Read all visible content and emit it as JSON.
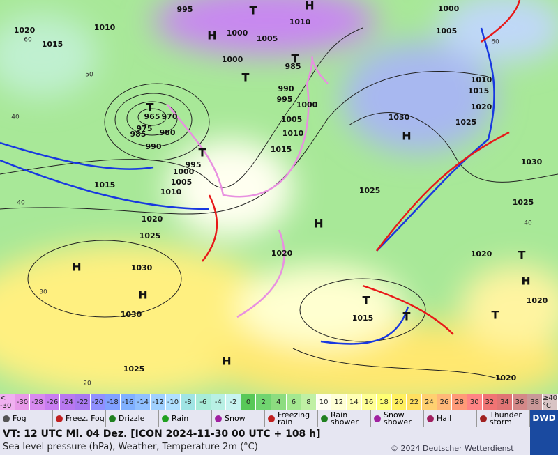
{
  "map": {
    "pressure_labels": [
      995,
      1000,
      1005,
      1010,
      1010,
      1015,
      1020,
      1000,
      985,
      990,
      995,
      1000,
      1005,
      1010,
      1015,
      965,
      970,
      975,
      980,
      985,
      990,
      995,
      1000,
      1005,
      1010,
      1015,
      1020,
      1025,
      1030,
      1030,
      1025,
      1020,
      1015,
      1025,
      1030,
      1025,
      1020,
      1015,
      1010,
      1005,
      1000,
      1030,
      1025,
      1020,
      1020,
      1020
    ],
    "pressure_centers": [
      "H",
      "H",
      "H",
      "H",
      "H",
      "H",
      "H",
      "H",
      "T",
      "T",
      "T",
      "T",
      "T",
      "T",
      "T",
      "T",
      "T"
    ],
    "grid_labels": [
      60,
      50,
      40,
      40,
      30,
      20,
      60,
      40
    ]
  },
  "temperature_scale": {
    "labels": [
      "< -30",
      -30,
      -28,
      -26,
      -24,
      -22,
      -20,
      -18,
      -16,
      -14,
      -12,
      -10,
      -8,
      -6,
      -4,
      -2,
      0,
      2,
      4,
      6,
      8,
      10,
      12,
      14,
      16,
      18,
      20,
      22,
      24,
      26,
      28,
      30,
      32,
      34,
      36,
      38,
      "≥40 °C"
    ],
    "colors": [
      "#f0b0f0",
      "#e89ae8",
      "#d88af0",
      "#c87cf0",
      "#b878f0",
      "#a878f0",
      "#9090ff",
      "#80a0ff",
      "#80b0ff",
      "#90c0ff",
      "#a0d0ff",
      "#b0e0ff",
      "#a0e4e4",
      "#a8ecd8",
      "#b8f0e4",
      "#c8f4f0",
      "#58c858",
      "#70d470",
      "#8cdc80",
      "#a4e890",
      "#c0f0a4",
      "#fffff0",
      "#ffffd4",
      "#ffffb4",
      "#ffff94",
      "#ffff74",
      "#fff060",
      "#ffe060",
      "#ffd070",
      "#ffb878",
      "#ff9a78",
      "#ff8484",
      "#f07474",
      "#e07474",
      "#d48888",
      "#c89898",
      "#d8c4c4"
    ]
  },
  "weather_legend": [
    "Fog",
    "Freez. Fog",
    "Drizzle",
    "Rain",
    "Snow",
    "Freezing rain",
    "Rain shower",
    "Snow shower",
    "Hail",
    "Thunder storm"
  ],
  "footer": {
    "valid_time": "VT: 12 UTC Mi.  04 Dez. [ICON 2024-11-30  00 UTC + 108 h]",
    "description": "Sea level pressure (hPa), Weather, Temperature 2m (°C)",
    "copyright": "© 2024 Deutscher Wetterdienst",
    "logo": "DWD"
  }
}
